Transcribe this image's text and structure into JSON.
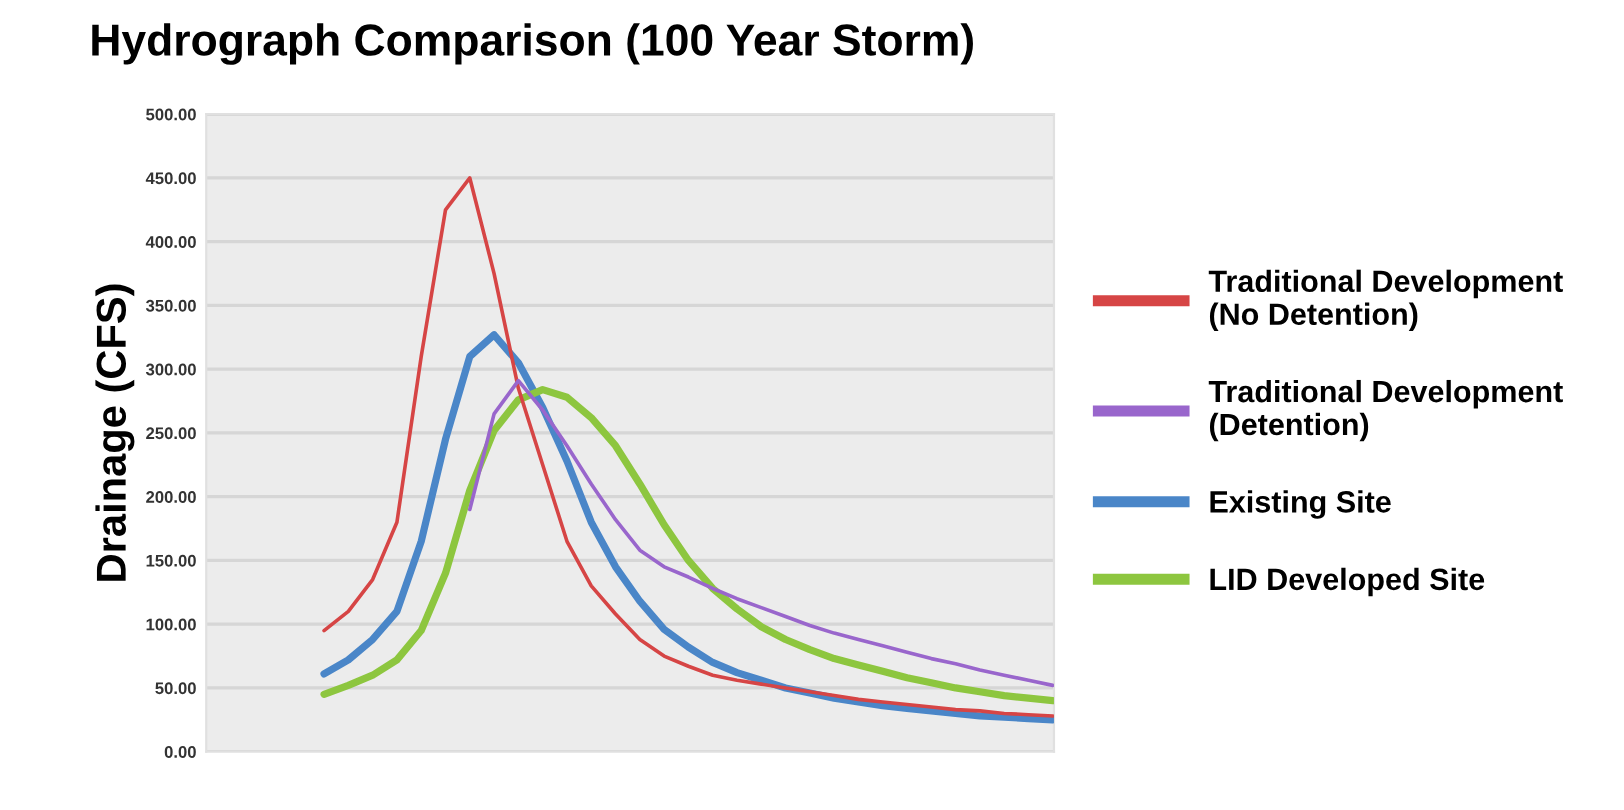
{
  "chart_data": {
    "type": "line",
    "title": "Hydrograph Comparison (100 Year Storm)",
    "ylabel": "Drainage (CFS)",
    "categories": [
      null,
      null,
      null,
      null,
      null,
      null,
      null,
      null,
      null,
      null,
      null,
      null,
      null,
      null,
      null,
      null,
      null,
      null,
      null,
      null,
      null,
      null,
      null,
      null,
      null,
      null,
      null,
      null,
      null,
      null,
      null
    ],
    "series": [
      {
        "name": "Traditional Development\n(No Detention)",
        "color": "#d64545",
        "values": [
          95,
          110,
          135,
          180,
          310,
          425,
          450,
          375,
          285,
          225,
          165,
          130,
          108,
          88,
          75,
          67,
          60,
          56,
          53,
          50,
          47,
          44,
          41,
          39,
          37,
          35,
          33,
          32,
          30,
          29,
          28
        ]
      },
      {
        "name": "Traditional Development\n(Detention)",
        "color": "#9966cc",
        "values": [
          null,
          null,
          null,
          null,
          null,
          null,
          190,
          265,
          291,
          268,
          240,
          210,
          182,
          158,
          145,
          137,
          128,
          120,
          113,
          106,
          99,
          93,
          88,
          83,
          78,
          73,
          69,
          64,
          60,
          56,
          52
        ]
      },
      {
        "name": "Existing Site",
        "color": "#4a86c8",
        "values": [
          61,
          72,
          88,
          110,
          165,
          245,
          310,
          327,
          305,
          270,
          228,
          180,
          145,
          118,
          96,
          82,
          70,
          62,
          56,
          50,
          46,
          42,
          39,
          36,
          34,
          32,
          30,
          28,
          27,
          26,
          25
        ]
      },
      {
        "name": "LID Developed Site",
        "color": "#8dc63f",
        "values": [
          45,
          52,
          60,
          72,
          95,
          140,
          205,
          252,
          276,
          284,
          278,
          262,
          240,
          210,
          178,
          150,
          128,
          112,
          98,
          88,
          80,
          73,
          68,
          63,
          58,
          54,
          50,
          47,
          44,
          42,
          40
        ]
      }
    ],
    "ylim": [
      0,
      500
    ],
    "yticks": [
      {
        "value": 0,
        "label": "0.00"
      },
      {
        "value": 50,
        "label": "50.00"
      },
      {
        "value": 100,
        "label": "100.00"
      },
      {
        "value": 150,
        "label": "150.00"
      },
      {
        "value": 200,
        "label": "200.00"
      },
      {
        "value": 250,
        "label": "250.00"
      },
      {
        "value": 300,
        "label": "300.00"
      },
      {
        "value": 350,
        "label": "350.00"
      },
      {
        "value": 400,
        "label": "400.00"
      },
      {
        "value": 450,
        "label": "450.00"
      },
      {
        "value": 500,
        "label": "500.00"
      }
    ],
    "grid": "y",
    "legend": "right",
    "marker": "none",
    "line_style": "solid"
  }
}
